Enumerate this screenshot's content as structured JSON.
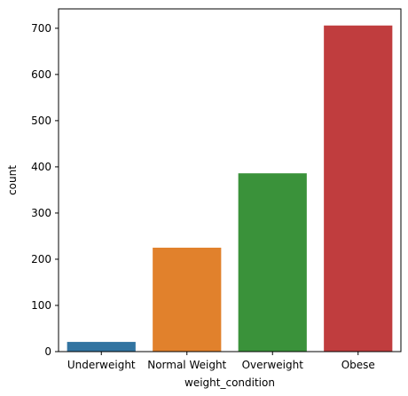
{
  "chart_data": {
    "type": "bar",
    "categories": [
      "Underweight",
      "Normal Weight",
      "Overweight",
      "Obese"
    ],
    "values": [
      21,
      225,
      386,
      706
    ],
    "colors": [
      "#3274a1",
      "#e1812c",
      "#3a923a",
      "#c03d3e"
    ],
    "title": "",
    "xlabel": "weight_condition",
    "ylabel": "count",
    "ylim": [
      0,
      742
    ],
    "yticks": [
      0,
      100,
      200,
      300,
      400,
      500,
      600,
      700
    ],
    "grid": false,
    "legend": "none"
  }
}
